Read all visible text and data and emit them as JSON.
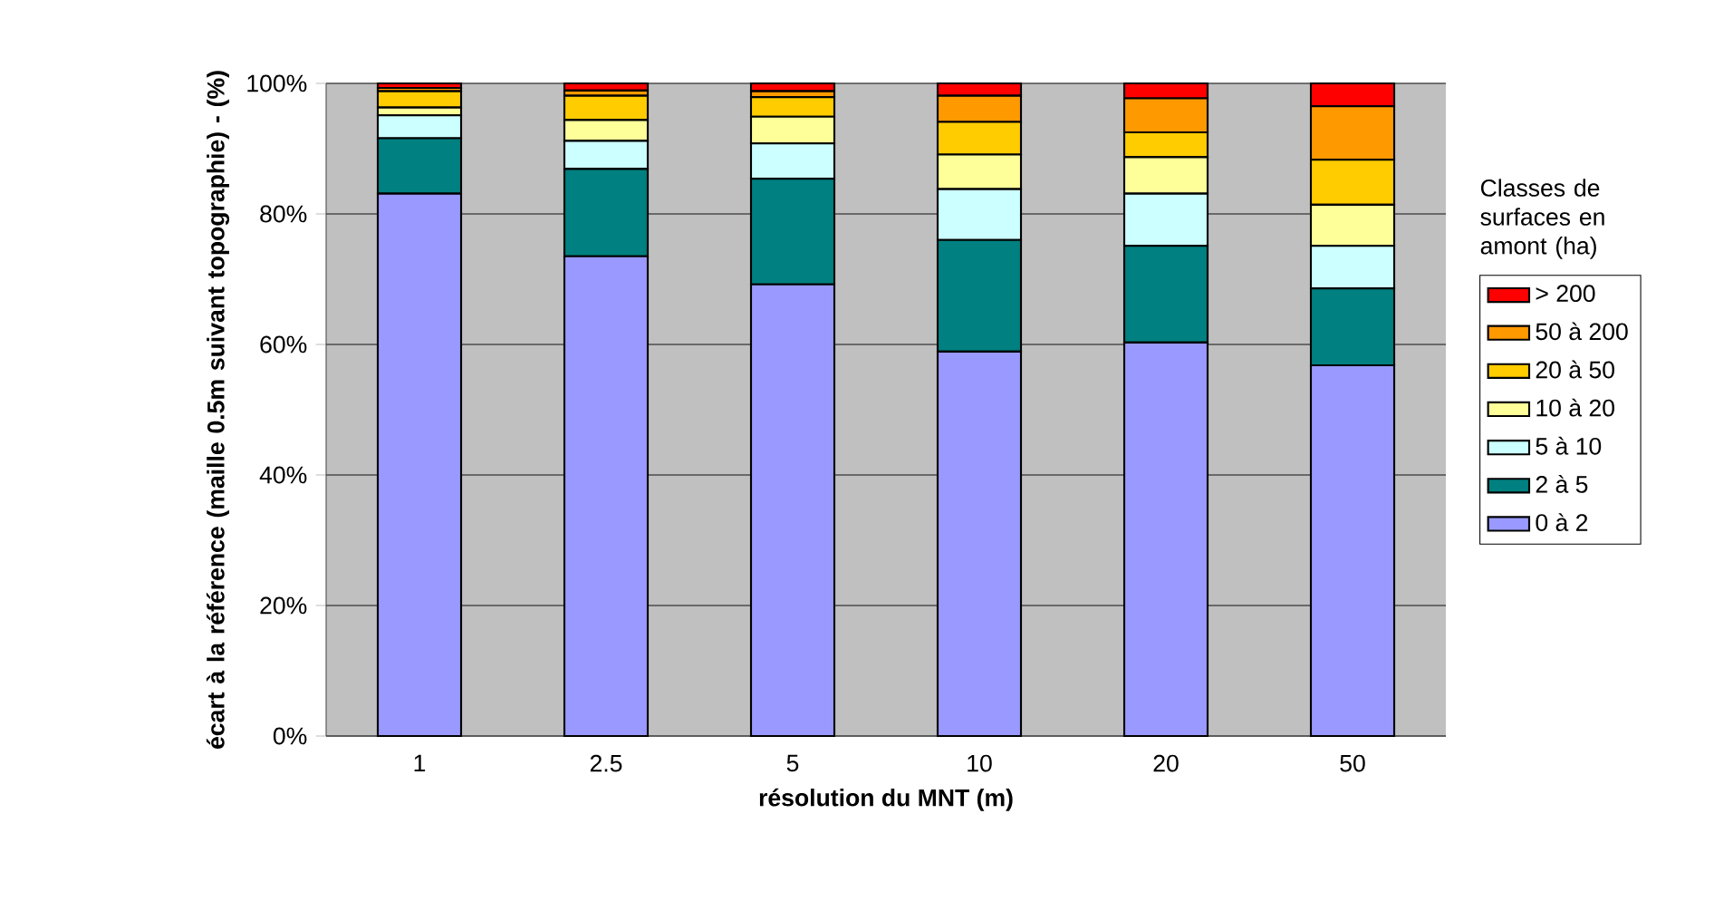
{
  "chart_data": {
    "type": "bar",
    "stacked": true,
    "xlabel": "résolution du MNT (m)",
    "ylabel": "écart à la référence (maille 0.5m suivant topographie) - (%)",
    "legend_title": "Classes de surfaces en amont (ha)",
    "categories": [
      "1",
      "2.5",
      "5",
      "10",
      "20",
      "50"
    ],
    "series": [
      {
        "name": "0 à 2",
        "color": "#9999ff",
        "values": [
          83.1,
          73.5,
          69.2,
          58.9,
          60.3,
          56.8
        ]
      },
      {
        "name": "2 à 5",
        "color": "#008080",
        "values": [
          8.5,
          13.4,
          16.2,
          17.1,
          14.8,
          11.8
        ]
      },
      {
        "name": "5 à 10",
        "color": "#ccffff",
        "values": [
          3.5,
          4.3,
          5.4,
          7.8,
          8.0,
          6.5
        ]
      },
      {
        "name": "10 à 20",
        "color": "#ffff99",
        "values": [
          1.2,
          3.2,
          4.1,
          5.3,
          5.6,
          6.3
        ]
      },
      {
        "name": "20 à 50",
        "color": "#ffcc00",
        "values": [
          2.5,
          3.7,
          3.0,
          5.0,
          3.8,
          6.9
        ]
      },
      {
        "name": "50 à 200",
        "color": "#ff9900",
        "values": [
          0.5,
          0.8,
          0.9,
          4.0,
          5.2,
          8.2
        ]
      },
      {
        "name": "> 200",
        "color": "#ff0000",
        "values": [
          0.7,
          1.1,
          1.2,
          1.9,
          2.3,
          3.5
        ]
      }
    ],
    "ylim": [
      0,
      100
    ],
    "yticks": [
      {
        "value": 0,
        "label": "0%"
      },
      {
        "value": 20,
        "label": "20%"
      },
      {
        "value": 40,
        "label": "40%"
      },
      {
        "value": 60,
        "label": "60%"
      },
      {
        "value": 80,
        "label": "80%"
      },
      {
        "value": 100,
        "label": "100%"
      }
    ],
    "grid": "y",
    "legend": "right"
  }
}
